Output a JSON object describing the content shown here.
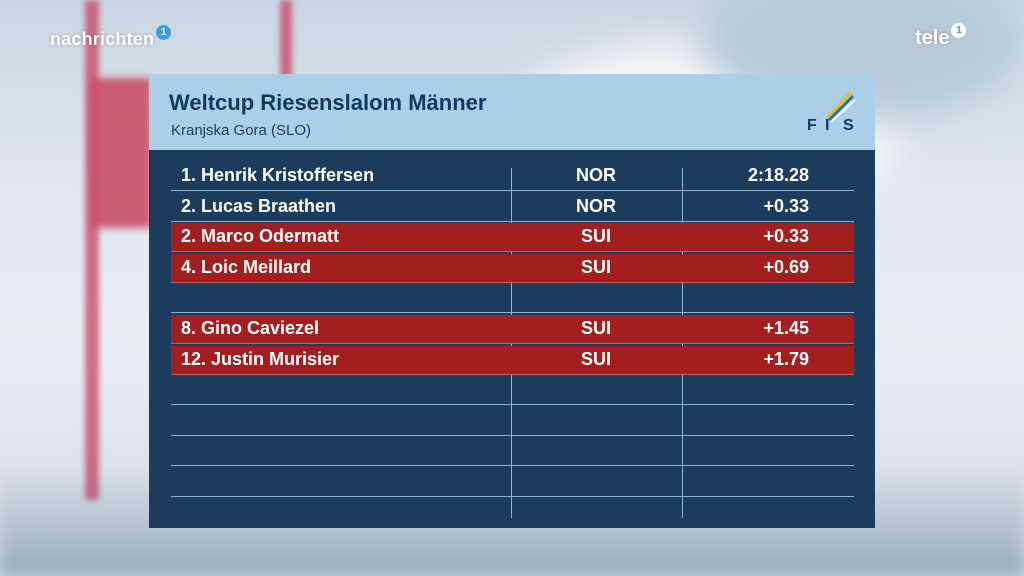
{
  "brand": {
    "left_label": "nachrichten",
    "left_badge": "1",
    "right_label": "tele",
    "right_badge": "1"
  },
  "panel": {
    "title": "Weltcup Riesenslalom Männer",
    "subtitle": "Kranjska Gora (SLO)",
    "logo_text": "FIS"
  },
  "results": [
    {
      "name": "1. Henrik Kristoffersen",
      "nation": "NOR",
      "time": "2:18.28",
      "highlight": false
    },
    {
      "name": "2. Lucas Braathen",
      "nation": "NOR",
      "time": "+0.33",
      "highlight": false
    },
    {
      "name": "2. Marco Odermatt",
      "nation": "SUI",
      "time": "+0.33",
      "highlight": true
    },
    {
      "name": "4. Loic Meillard",
      "nation": "SUI",
      "time": "+0.69",
      "highlight": true
    },
    {
      "name": "",
      "nation": "",
      "time": "",
      "highlight": false
    },
    {
      "name": "8. Gino Caviezel",
      "nation": "SUI",
      "time": "+1.45",
      "highlight": true
    },
    {
      "name": "12. Justin Murisier",
      "nation": "SUI",
      "time": "+1.79",
      "highlight": true
    },
    {
      "name": "",
      "nation": "",
      "time": "",
      "highlight": false
    },
    {
      "name": "",
      "nation": "",
      "time": "",
      "highlight": false
    },
    {
      "name": "",
      "nation": "",
      "time": "",
      "highlight": false
    },
    {
      "name": "",
      "nation": "",
      "time": "",
      "highlight": false
    }
  ],
  "colors": {
    "panel": "#1c3c5e",
    "header": "#a9cfe9",
    "highlight": "#a31e1e"
  }
}
